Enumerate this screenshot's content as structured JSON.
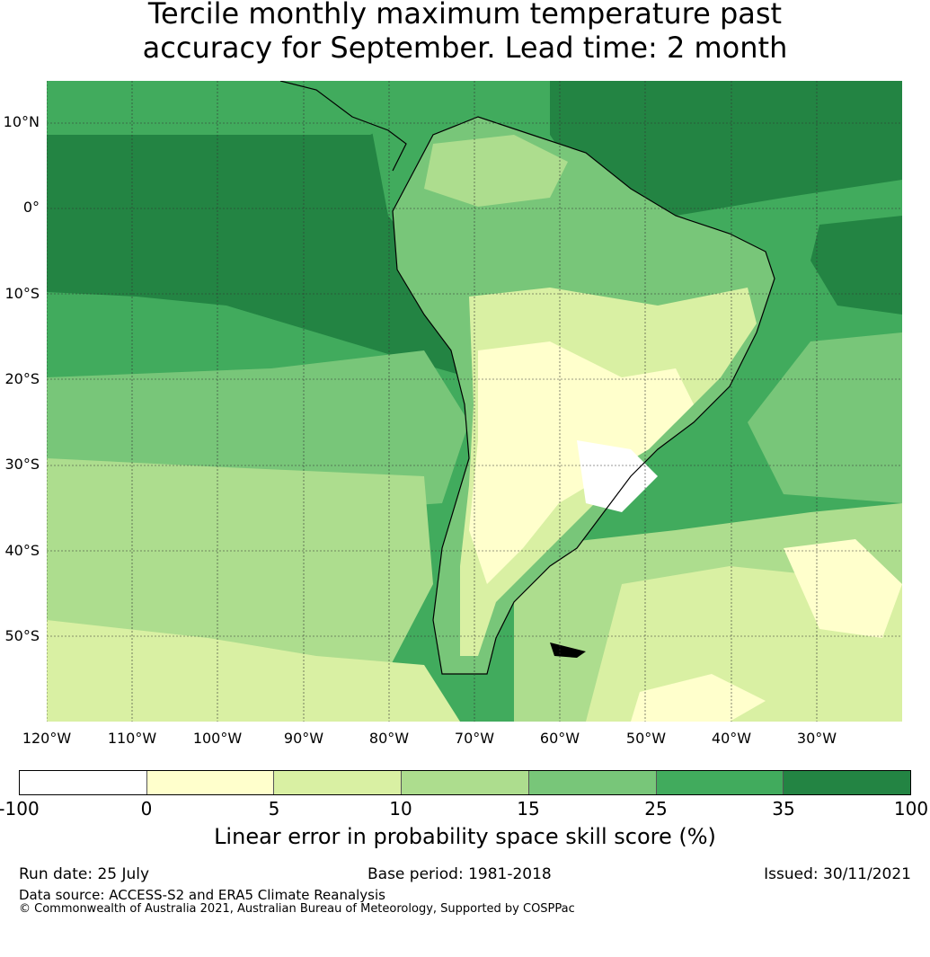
{
  "title_line1": "Tercile monthly maximum temperature past",
  "title_line2": "accuracy for September. Lead time: 2 month",
  "lat_labels": [
    "10°N",
    "0°",
    "10°S",
    "20°S",
    "30°S",
    "40°S",
    "50°S"
  ],
  "lon_labels": [
    "120°W",
    "110°W",
    "100°W",
    "90°W",
    "80°W",
    "70°W",
    "60°W",
    "50°W",
    "40°W",
    "30°W"
  ],
  "colorbar": {
    "ticks": [
      "-100",
      "0",
      "5",
      "10",
      "15",
      "25",
      "35",
      "100"
    ],
    "colors": [
      "#ffffff",
      "#ffffcc",
      "#d9f0a3",
      "#addd8e",
      "#78c679",
      "#41ab5d",
      "#238443"
    ],
    "label": "Linear error in probability space skill score (%)"
  },
  "footer": {
    "run_date": "Run date: 25 July",
    "base_period": "Base period: 1981-2018",
    "issued": "Issued: 30/11/2021",
    "data_source": "Data source: ACCESS-S2 and ERA5 Climate Reanalysis",
    "copyright": "© Commonwealth of Australia 2021, Australian Bureau of Meteorology, Supported by COSPPac"
  }
}
